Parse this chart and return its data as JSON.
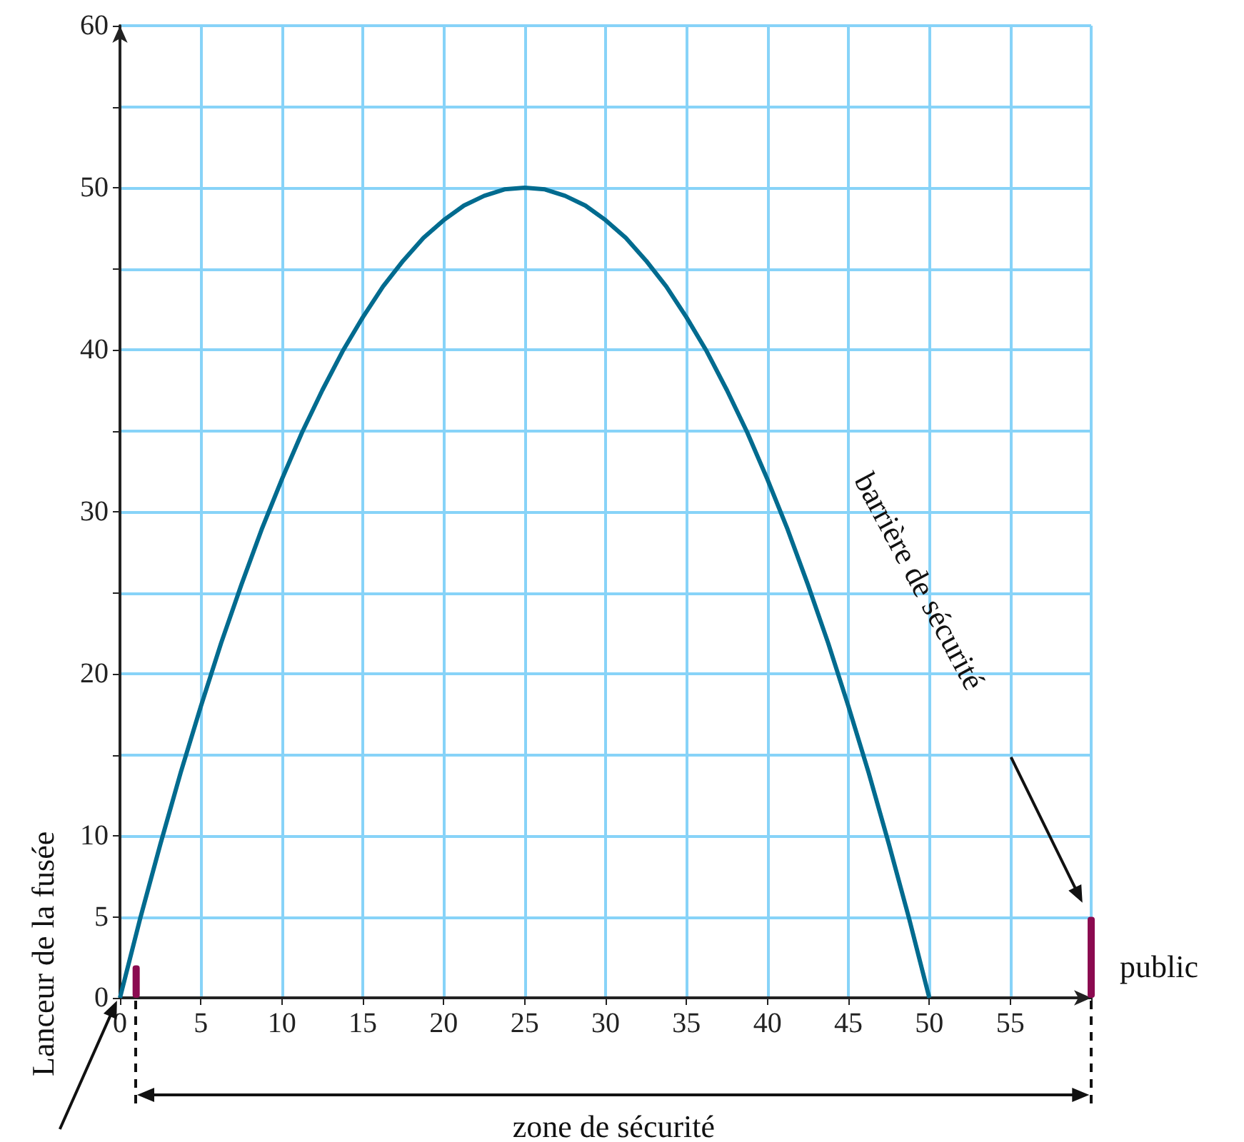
{
  "chart_data": {
    "type": "line",
    "x": [
      0,
      1.25,
      2.5,
      3.75,
      5,
      6.25,
      7.5,
      8.75,
      10,
      11.25,
      12.5,
      13.75,
      15,
      16.25,
      17.5,
      18.75,
      20,
      21.25,
      22.5,
      23.75,
      25,
      26.25,
      27.5,
      28.75,
      30,
      31.25,
      32.5,
      33.75,
      35,
      36.25,
      37.5,
      38.75,
      40,
      41.25,
      42.5,
      43.75,
      45,
      46.25,
      47.5,
      48.75,
      50
    ],
    "series": [
      {
        "color": "#006b8f",
        "values": [
          0,
          4.9,
          9.5,
          13.9,
          18,
          21.9,
          25.5,
          28.9,
          32,
          34.9,
          37.5,
          39.9,
          42,
          43.9,
          45.5,
          46.9,
          48,
          48.9,
          49.5,
          49.9,
          50,
          49.9,
          49.5,
          48.9,
          48,
          46.9,
          45.5,
          43.9,
          42,
          39.9,
          37.5,
          34.9,
          32,
          28.9,
          25.5,
          21.9,
          18,
          13.9,
          9.5,
          4.9,
          0
        ]
      },
      {
        "type": "bar",
        "color": "#8b0a50",
        "x": [
          1,
          60
        ],
        "values": [
          2,
          5
        ]
      }
    ],
    "xlim": [
      0,
      60
    ],
    "xticks": [
      0,
      5,
      10,
      15,
      20,
      25,
      30,
      35,
      40,
      45,
      50,
      55,
      {
        "value": 60,
        "label": null
      }
    ],
    "ylim": [
      0,
      60
    ],
    "yticks": [
      0,
      5,
      10,
      {
        "value": 15,
        "label": null
      },
      20,
      {
        "value": 25,
        "label": null
      },
      30,
      {
        "value": 35,
        "label": null
      },
      40,
      {
        "value": 45,
        "label": null
      },
      50,
      {
        "value": 55,
        "label": null
      },
      60
    ],
    "grid": true,
    "marker": "none",
    "annotations": [
      {
        "text": "Lanceur de la fusée",
        "x": 0,
        "y": 0
      },
      "barrière de sécurité",
      "zone de sécurité",
      "public"
    ]
  }
}
